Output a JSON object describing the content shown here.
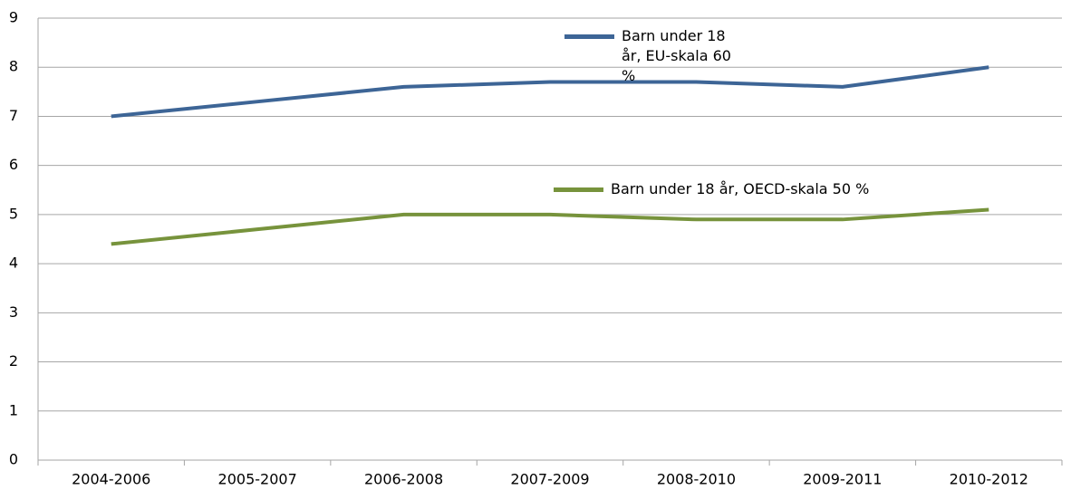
{
  "chart_data": {
    "type": "line",
    "categories": [
      "2004-2006",
      "2005-2007",
      "2006-2008",
      "2007-2009",
      "2008-2010",
      "2009-2011",
      "2010-2012"
    ],
    "series": [
      {
        "name": "Barn under 18 år, EU-skala 60 %",
        "color": "#3d6596",
        "values": [
          7.0,
          7.3,
          7.6,
          7.7,
          7.7,
          7.6,
          8.0
        ]
      },
      {
        "name": "Barn under 18 år, OECD-skala 50 %",
        "color": "#77933c",
        "values": [
          4.4,
          4.7,
          5.0,
          5.0,
          4.9,
          4.9,
          5.1
        ]
      }
    ],
    "ylim": [
      0,
      9
    ],
    "yticks": [
      0,
      1,
      2,
      3,
      4,
      5,
      6,
      7,
      8,
      9
    ],
    "grid": true
  }
}
